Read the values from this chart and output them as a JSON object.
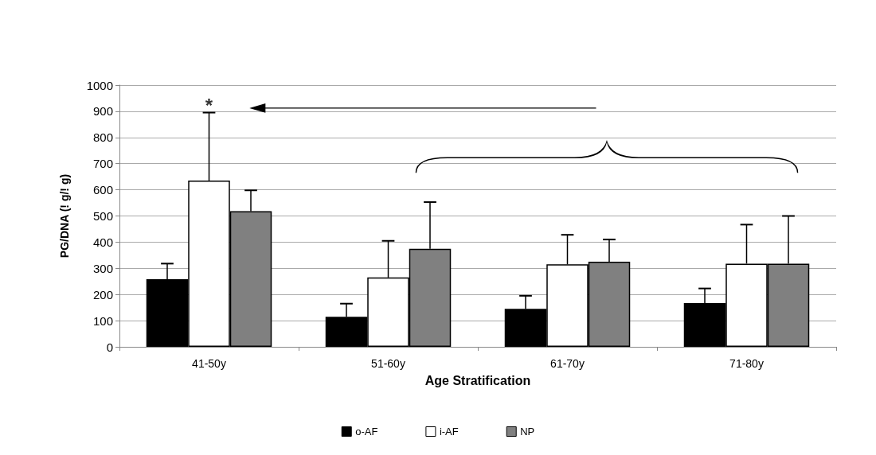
{
  "chart_data": {
    "type": "bar",
    "xlabel": "Age Stratification",
    "ylabel": "PG/DNA (! g/! g)",
    "categories": [
      "41-50y",
      "51-60y",
      "61-70y",
      "71-80y"
    ],
    "series": [
      {
        "name": "o-AF",
        "color": "#000000",
        "values": [
          258,
          115,
          145,
          167
        ],
        "errors": [
          [
            258,
            318
          ],
          [
            115,
            165
          ],
          [
            145,
            195
          ],
          [
            167,
            223
          ]
        ]
      },
      {
        "name": "i-AF",
        "color": "#ffffff",
        "values": [
          635,
          265,
          315,
          318
        ],
        "errors": [
          [
            635,
            895
          ],
          [
            265,
            405
          ],
          [
            315,
            428
          ],
          [
            318,
            467
          ]
        ]
      },
      {
        "name": "NP",
        "color": "#808080",
        "values": [
          518,
          375,
          325,
          318
        ],
        "errors": [
          [
            518,
            598
          ],
          [
            375,
            553
          ],
          [
            325,
            410
          ],
          [
            318,
            500
          ]
        ]
      }
    ],
    "ylim": [
      0,
      1000
    ],
    "yticks": [
      0,
      100,
      200,
      300,
      400,
      500,
      600,
      700,
      800,
      900,
      1000
    ],
    "grid": "y",
    "legend": "bottom",
    "annotations": [
      {
        "text": "*",
        "x": "41-50y",
        "y": 895
      }
    ]
  }
}
